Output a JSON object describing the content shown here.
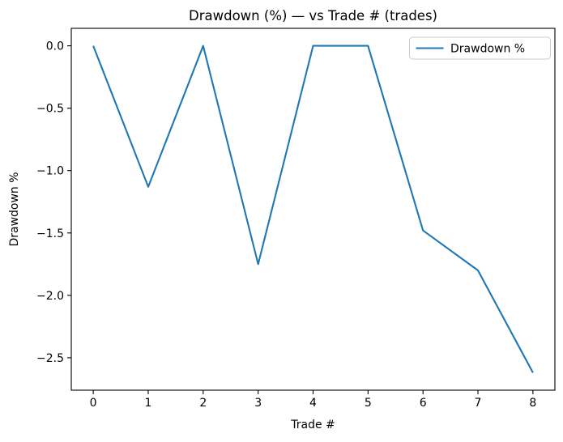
{
  "figure": {
    "background": "#ffffff"
  },
  "chart_data": {
    "type": "line",
    "title": "Drawdown (%) — vs Trade # (trades)",
    "xlabel": "Trade #",
    "ylabel": "Drawdown %",
    "x": [
      0,
      1,
      2,
      3,
      4,
      5,
      6,
      7,
      8
    ],
    "series": [
      {
        "name": "Drawdown %",
        "color": "#1f77b4",
        "values": [
          0.0,
          -1.13,
          0.0,
          -1.75,
          0.0,
          0.0,
          -1.48,
          -1.8,
          -2.62
        ]
      }
    ],
    "xlim": [
      -0.4,
      8.4
    ],
    "ylim": [
      -2.76,
      0.14
    ],
    "xticks": {
      "values": [
        0,
        1,
        2,
        3,
        4,
        5,
        6,
        7,
        8
      ],
      "labels": [
        "0",
        "1",
        "2",
        "3",
        "4",
        "5",
        "6",
        "7",
        "8"
      ]
    },
    "yticks": {
      "values": [
        0.0,
        -0.5,
        -1.0,
        -1.5,
        -2.0,
        -2.5
      ],
      "labels": [
        "0.0",
        "−0.5",
        "−1.0",
        "−1.5",
        "−2.0",
        "−2.5"
      ]
    },
    "grid": false,
    "legend": {
      "position": "upper right",
      "entries": [
        {
          "label": "Drawdown %",
          "color": "#1f77b4",
          "icon": "line-sample-icon"
        }
      ]
    },
    "axis_color": "#000000",
    "text_color": "#000000",
    "legend_border_color": "#cccccc"
  }
}
